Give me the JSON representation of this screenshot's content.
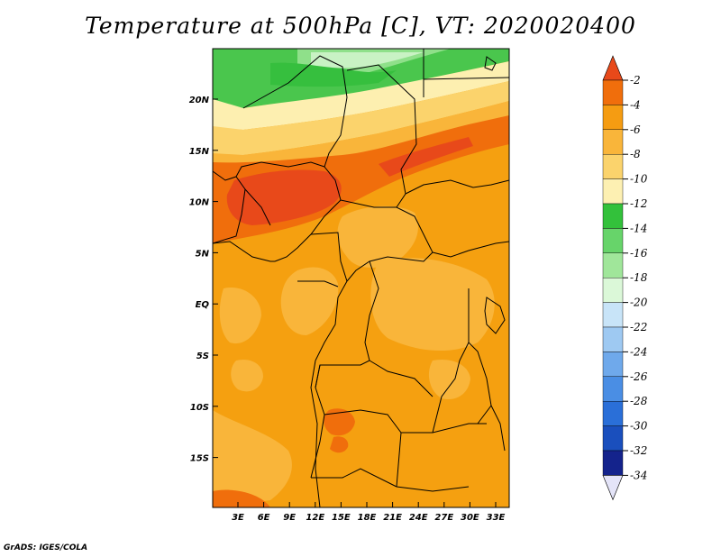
{
  "title": "Temperature at 500hPa [C], VT: 2020020400",
  "footer": "GrADS: IGES/COLA",
  "map": {
    "lat_labels": [
      "20N",
      "15N",
      "10N",
      "5N",
      "EQ",
      "5S",
      "10S",
      "15S"
    ],
    "lon_labels": [
      "3E",
      "6E",
      "9E",
      "12E",
      "15E",
      "18E",
      "21E",
      "24E",
      "27E",
      "30E",
      "33E"
    ]
  },
  "colorbar": {
    "labels": [
      "-2",
      "-4",
      "-6",
      "-8",
      "-10",
      "-12",
      "-14",
      "-16",
      "-18",
      "-20",
      "-22",
      "-24",
      "-26",
      "-28",
      "-30",
      "-32",
      "-34"
    ],
    "colors": [
      "#e8491a",
      "#f06e0c",
      "#f59c12",
      "#f9b53a",
      "#fbd36c",
      "#fdf0b2",
      "#33c13b",
      "#67d46a",
      "#a0e69a",
      "#dbf8d8",
      "#c8e4f8",
      "#9ec9f2",
      "#6fa9eb",
      "#4a8ee4",
      "#2a6fd8",
      "#1a4fbd",
      "#14238c",
      "#e4e4f8"
    ]
  }
}
